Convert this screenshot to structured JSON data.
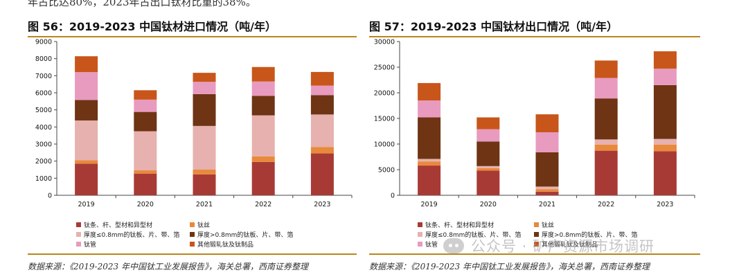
{
  "top_text": "年占比达80%，2023年占出口钛材比重的38%。",
  "watermark": {
    "text": "公众号 · 矿产资源市场调研"
  },
  "legend_labels": [
    "钛条、杆、型材和异型材",
    "钛丝",
    "厚度≤0.8mm的钛板、片、带、箔",
    "厚度>0.8mm的钛板、片、带、箔",
    "钛管",
    "其他锻轧钛及钛制品"
  ],
  "colors": [
    "#a83a36",
    "#e8893c",
    "#e6b1ae",
    "#6e3414",
    "#e89bbf",
    "#c8561a"
  ],
  "charts": [
    {
      "title": "图 56：2019-2023 中国钛材进口情况（吨/年）",
      "source": "数据来源：《2019-2023 年中国钛工业发展报告》，海关总署，西南证券整理"
    },
    {
      "title": "图 57：2019-2023 中国钛材出口情况（吨/年）",
      "source": "数据来源：《2019-2023 年中国钛工业发展报告》，海关总署，西南证券整理"
    }
  ],
  "chart_data": [
    {
      "type": "bar",
      "stacked": true,
      "title": "图 56：2019-2023 中国钛材进口情况（吨/年）",
      "categories": [
        "2019",
        "2020",
        "2021",
        "2022",
        "2023"
      ],
      "ylim": [
        0,
        9000
      ],
      "yticks": [
        0,
        1000,
        2000,
        3000,
        4000,
        5000,
        6000,
        7000,
        8000,
        9000
      ],
      "series": [
        {
          "name": "钛条、杆、型材和异型材",
          "values": [
            1850,
            1270,
            1220,
            1950,
            2450
          ]
        },
        {
          "name": "钛丝",
          "values": [
            200,
            200,
            280,
            330,
            380
          ]
        },
        {
          "name": "厚度≤0.8mm的钛板、片、带、箔",
          "values": [
            2330,
            2280,
            2560,
            2400,
            1900
          ]
        },
        {
          "name": "厚度>0.8mm的钛板、片、带、箔",
          "values": [
            1200,
            1130,
            1860,
            1140,
            1130
          ]
        },
        {
          "name": "钛管",
          "values": [
            1630,
            720,
            720,
            840,
            560
          ]
        },
        {
          "name": "其他锻轧钛及钛制品",
          "values": [
            930,
            550,
            530,
            850,
            800
          ]
        }
      ]
    },
    {
      "type": "bar",
      "stacked": true,
      "title": "图 57：2019-2023 中国钛材出口情况（吨/年）",
      "categories": [
        "2019",
        "2020",
        "2021",
        "2022",
        "2023"
      ],
      "ylim": [
        0,
        30000
      ],
      "yticks": [
        0,
        5000,
        10000,
        15000,
        20000,
        25000,
        30000
      ],
      "series": [
        {
          "name": "钛条、杆、型材和异型材",
          "values": [
            5800,
            4800,
            700,
            8700,
            8600
          ]
        },
        {
          "name": "钛丝",
          "values": [
            800,
            500,
            500,
            1200,
            1300
          ]
        },
        {
          "name": "厚度≤0.8mm的钛板、片、带、箔",
          "values": [
            500,
            400,
            500,
            1000,
            1100
          ]
        },
        {
          "name": "厚度>0.8mm的钛板、片、带、箔",
          "values": [
            8100,
            4800,
            6700,
            8000,
            10500
          ]
        },
        {
          "name": "钛管",
          "values": [
            3300,
            2400,
            3900,
            4000,
            3200
          ]
        },
        {
          "name": "其他锻轧钛及钛制品",
          "values": [
            3400,
            2300,
            3500,
            3400,
            3400
          ]
        }
      ]
    }
  ]
}
